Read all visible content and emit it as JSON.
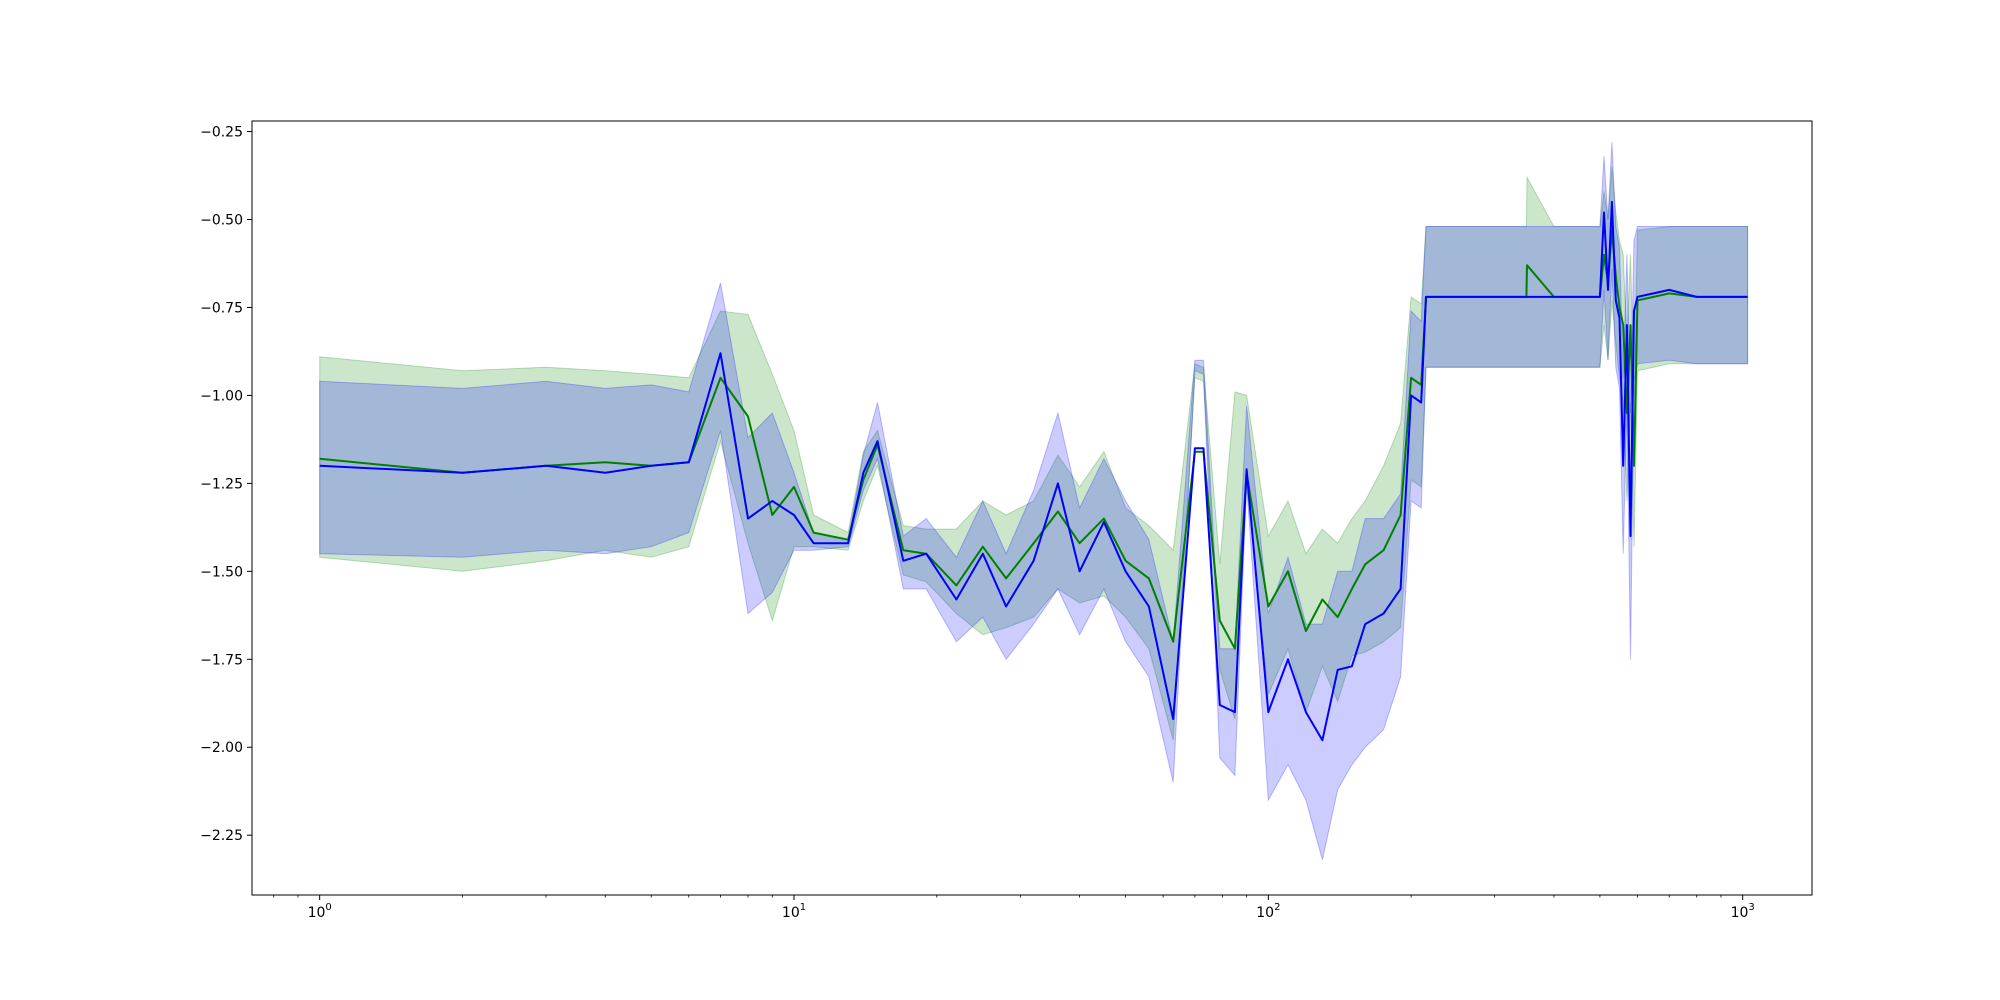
{
  "chart_data": {
    "type": "line",
    "title": "",
    "xlabel": "",
    "ylabel": "",
    "xscale": "log",
    "xlim": [
      0.72,
      1400
    ],
    "ylim": [
      -2.42,
      -0.22
    ],
    "grid": false,
    "legend": "none",
    "xticks": [
      {
        "value": 1,
        "base": "10",
        "exp": "0"
      },
      {
        "value": 10,
        "base": "10",
        "exp": "1"
      },
      {
        "value": 100,
        "base": "10",
        "exp": "2"
      },
      {
        "value": 1000,
        "base": "10",
        "exp": "3"
      }
    ],
    "yticks": [
      {
        "value": -0.25,
        "label": "−0.25"
      },
      {
        "value": -0.5,
        "label": "−0.50"
      },
      {
        "value": -0.75,
        "label": "−0.75"
      },
      {
        "value": -1.0,
        "label": "−1.00"
      },
      {
        "value": -1.25,
        "label": "−1.25"
      },
      {
        "value": -1.5,
        "label": "−1.50"
      },
      {
        "value": -1.75,
        "label": "−1.75"
      },
      {
        "value": -2.0,
        "label": "−2.00"
      },
      {
        "value": -2.25,
        "label": "−2.25"
      }
    ],
    "series": [
      {
        "color": "#008000",
        "band_fill_opacity": 0.2,
        "x": [
          1,
          2,
          3,
          4,
          5,
          6,
          7,
          8,
          9,
          10,
          11,
          13,
          14,
          15,
          17,
          19,
          22,
          25,
          28,
          32,
          36,
          40,
          45,
          50,
          56,
          63,
          70,
          73,
          79,
          85,
          90,
          100,
          110,
          120,
          130,
          140,
          150,
          160,
          175,
          190,
          200,
          210,
          215,
          300,
          350,
          351,
          400,
          500,
          510,
          520,
          530,
          540,
          550,
          560,
          570,
          580,
          590,
          600,
          700,
          800,
          1024
        ],
        "y": [
          -1.18,
          -1.22,
          -1.2,
          -1.19,
          -1.2,
          -1.19,
          -0.95,
          -1.06,
          -1.34,
          -1.26,
          -1.39,
          -1.41,
          -1.24,
          -1.14,
          -1.44,
          -1.45,
          -1.54,
          -1.43,
          -1.52,
          -1.42,
          -1.33,
          -1.42,
          -1.35,
          -1.47,
          -1.52,
          -1.7,
          -1.16,
          -1.16,
          -1.64,
          -1.72,
          -1.22,
          -1.6,
          -1.5,
          -1.67,
          -1.58,
          -1.63,
          -1.55,
          -1.48,
          -1.44,
          -1.34,
          -0.95,
          -0.97,
          -0.72,
          -0.72,
          -0.72,
          -0.63,
          -0.72,
          -0.72,
          -0.6,
          -0.68,
          -0.53,
          -0.66,
          -0.75,
          -0.8,
          -1.05,
          -0.8,
          -1.2,
          -0.73,
          -0.71,
          -0.72,
          -0.72
        ],
        "lower": [
          -1.46,
          -1.5,
          -1.47,
          -1.44,
          -1.46,
          -1.43,
          -1.13,
          -1.42,
          -1.64,
          -1.43,
          -1.43,
          -1.44,
          -1.3,
          -1.2,
          -1.51,
          -1.53,
          -1.62,
          -1.68,
          -1.66,
          -1.63,
          -1.55,
          -1.59,
          -1.57,
          -1.63,
          -1.72,
          -1.98,
          -0.95,
          -0.96,
          -1.78,
          -1.92,
          -1.25,
          -1.85,
          -1.72,
          -1.9,
          -1.77,
          -1.87,
          -1.74,
          -1.73,
          -1.7,
          -1.66,
          -1.24,
          -1.26,
          -0.92,
          -0.92,
          -0.92,
          -0.92,
          -0.92,
          -0.92,
          -0.8,
          -0.9,
          -0.73,
          -0.85,
          -0.95,
          -1.02,
          -1.3,
          -1.02,
          -1.43,
          -0.93,
          -0.91,
          -0.91,
          -0.91
        ],
        "upper": [
          -0.89,
          -0.93,
          -0.92,
          -0.93,
          -0.94,
          -0.95,
          -0.76,
          -0.77,
          -0.94,
          -1.1,
          -1.34,
          -1.39,
          -1.16,
          -1.1,
          -1.37,
          -1.38,
          -1.38,
          -1.3,
          -1.34,
          -1.3,
          -1.17,
          -1.26,
          -1.16,
          -1.32,
          -1.37,
          -1.44,
          -0.91,
          -0.92,
          -1.48,
          -0.99,
          -1.0,
          -1.4,
          -1.3,
          -1.45,
          -1.38,
          -1.42,
          -1.35,
          -1.3,
          -1.2,
          -1.08,
          -0.72,
          -0.74,
          -0.52,
          -0.52,
          -0.52,
          -0.38,
          -0.52,
          -0.52,
          -0.42,
          -0.5,
          -0.35,
          -0.48,
          -0.56,
          -0.6,
          -0.85,
          -0.6,
          -1.0,
          -0.53,
          -0.52,
          -0.52,
          -0.52
        ]
      },
      {
        "color": "#0000ff",
        "band_fill_opacity": 0.2,
        "x": [
          1,
          2,
          3,
          4,
          5,
          6,
          7,
          8,
          9,
          10,
          11,
          13,
          14,
          15,
          17,
          19,
          22,
          25,
          28,
          32,
          36,
          40,
          45,
          50,
          56,
          63,
          70,
          73,
          79,
          85,
          90,
          100,
          110,
          120,
          130,
          140,
          150,
          160,
          175,
          190,
          200,
          210,
          215,
          300,
          350,
          351,
          400,
          500,
          510,
          520,
          530,
          540,
          550,
          560,
          570,
          580,
          590,
          600,
          700,
          800,
          1024
        ],
        "y": [
          -1.2,
          -1.22,
          -1.2,
          -1.22,
          -1.2,
          -1.19,
          -0.88,
          -1.35,
          -1.3,
          -1.34,
          -1.42,
          -1.42,
          -1.22,
          -1.13,
          -1.47,
          -1.45,
          -1.58,
          -1.45,
          -1.6,
          -1.47,
          -1.25,
          -1.5,
          -1.36,
          -1.5,
          -1.6,
          -1.92,
          -1.15,
          -1.15,
          -1.88,
          -1.9,
          -1.21,
          -1.9,
          -1.75,
          -1.9,
          -1.98,
          -1.78,
          -1.77,
          -1.65,
          -1.62,
          -1.55,
          -1.0,
          -1.02,
          -0.72,
          -0.72,
          -0.72,
          -0.72,
          -0.72,
          -0.72,
          -0.48,
          -0.7,
          -0.45,
          -0.73,
          -0.78,
          -1.2,
          -0.8,
          -1.4,
          -0.76,
          -0.72,
          -0.7,
          -0.72,
          -0.72
        ],
        "lower": [
          -1.45,
          -1.46,
          -1.44,
          -1.45,
          -1.43,
          -1.39,
          -1.1,
          -1.62,
          -1.56,
          -1.44,
          -1.44,
          -1.43,
          -1.27,
          -1.18,
          -1.55,
          -1.55,
          -1.7,
          -1.63,
          -1.75,
          -1.65,
          -1.55,
          -1.68,
          -1.55,
          -1.7,
          -1.8,
          -2.1,
          -0.93,
          -0.94,
          -2.03,
          -2.08,
          -1.25,
          -2.15,
          -2.05,
          -2.15,
          -2.32,
          -2.12,
          -2.05,
          -2.0,
          -1.95,
          -1.8,
          -1.3,
          -1.32,
          -0.92,
          -0.92,
          -0.92,
          -0.92,
          -0.92,
          -0.92,
          -0.7,
          -0.9,
          -0.64,
          -0.92,
          -0.98,
          -1.45,
          -1.02,
          -1.75,
          -0.96,
          -0.91,
          -0.9,
          -0.91,
          -0.91
        ],
        "upper": [
          -0.96,
          -0.98,
          -0.96,
          -0.98,
          -0.97,
          -0.99,
          -0.68,
          -1.12,
          -1.05,
          -1.22,
          -1.39,
          -1.41,
          -1.17,
          -1.02,
          -1.4,
          -1.35,
          -1.46,
          -1.3,
          -1.45,
          -1.27,
          -1.05,
          -1.32,
          -1.18,
          -1.3,
          -1.41,
          -1.7,
          -0.9,
          -0.9,
          -1.72,
          -1.72,
          -1.03,
          -1.62,
          -1.46,
          -1.65,
          -1.65,
          -1.5,
          -1.5,
          -1.35,
          -1.35,
          -1.28,
          -0.76,
          -0.79,
          -0.52,
          -0.52,
          -0.52,
          -0.52,
          -0.52,
          -0.52,
          -0.32,
          -0.5,
          -0.28,
          -0.52,
          -0.58,
          -0.95,
          -0.6,
          -1.05,
          -0.56,
          -0.52,
          -0.52,
          -0.52,
          -0.52
        ]
      }
    ]
  }
}
